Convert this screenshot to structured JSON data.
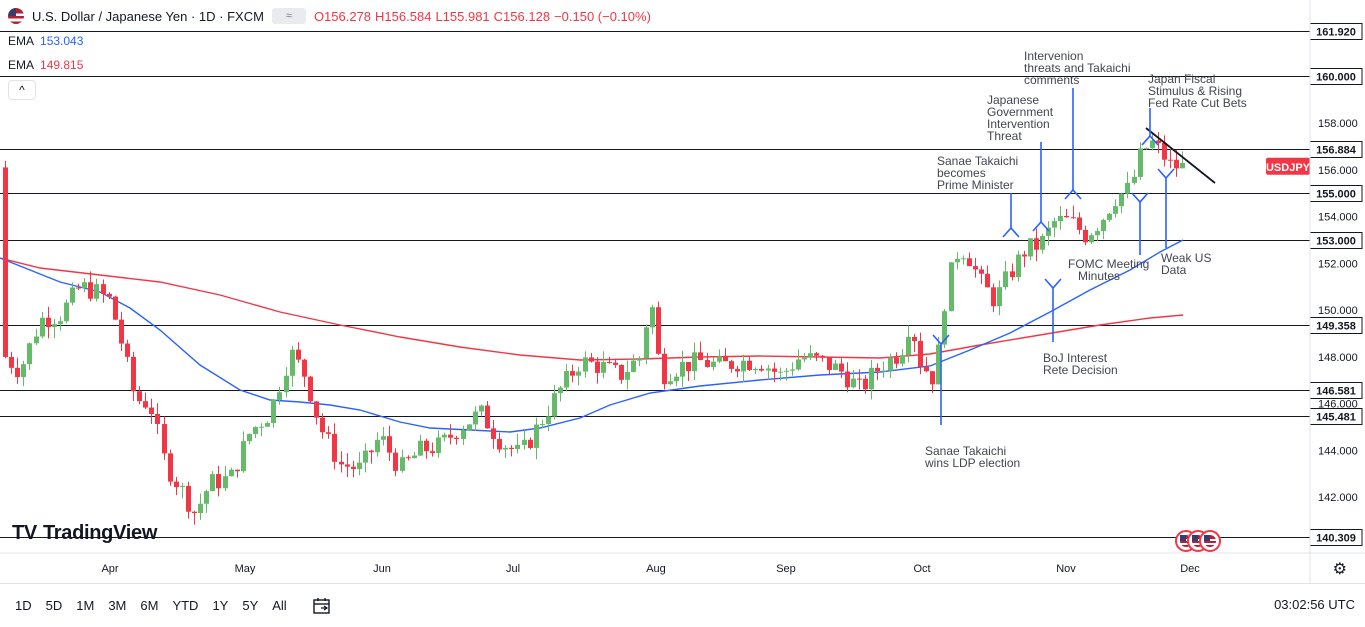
{
  "header": {
    "symbol": "U.S. Dollar / Japanese Yen · 1D · FXCM",
    "market_icon": "≈",
    "open": "O156.278",
    "high": "H156.584",
    "low": "L155.981",
    "close": "C156.128",
    "change": "−0.150 (−0.10%)"
  },
  "indicators": [
    {
      "label": "EMA",
      "value": "153.043",
      "color": "#2962ff"
    },
    {
      "label": "EMA",
      "value": "149.815",
      "color": "#f23645"
    }
  ],
  "collapse_icon": "^",
  "logo_text": "TradingView",
  "ranges": [
    "1D",
    "5D",
    "1M",
    "3M",
    "6M",
    "YTD",
    "1Y",
    "5Y",
    "All"
  ],
  "clock": "03:02:56 UTC",
  "symbol_tag": "USDJPY",
  "colors": {
    "up": "#26a69a",
    "down": "#f23645",
    "ema_fast": "#2962ff",
    "ema_slow": "#f23645",
    "up_candle": "#66bb6a"
  },
  "chart_data": {
    "type": "candlestick",
    "y_ticks": [
      142.0,
      144.0,
      146.0,
      148.0,
      150.0,
      152.0,
      154.0,
      156.0,
      158.0
    ],
    "x_ticks": [
      "Apr",
      "May",
      "Jun",
      "Jul",
      "Aug",
      "Sep",
      "Oct",
      "Nov",
      "Dec"
    ],
    "levels": [
      161.92,
      160.0,
      156.884,
      155.0,
      153.0,
      149.358,
      146.581,
      145.481,
      140.309
    ],
    "level_labels": [
      "161.920",
      "160.000",
      "156.884",
      "155.000",
      "153.000",
      "149.358",
      "146.581",
      "145.481",
      "140.309"
    ],
    "last_price": "USDJPY",
    "annotations": [
      {
        "text": [
          "Intervenion",
          "threats and Takaichi",
          "comments"
        ]
      },
      {
        "text": [
          "Japan Fiscal",
          "Stimulus & Rising",
          "Fed Rate Cut Bets"
        ]
      },
      {
        "text": [
          "Japanese",
          "Government",
          "Intervention",
          "Threat"
        ]
      },
      {
        "text": [
          "Sanae Takaichi",
          "becomes",
          "Prime Minister"
        ]
      },
      {
        "text": [
          "FOMC Meeting",
          "Minutes"
        ]
      },
      {
        "text": [
          "Weak US",
          "Data"
        ]
      },
      {
        "text": [
          "BoJ Interest",
          "Rete Decision"
        ]
      },
      {
        "text": [
          "Sanae Takaichi",
          "wins LDP election"
        ]
      }
    ]
  }
}
